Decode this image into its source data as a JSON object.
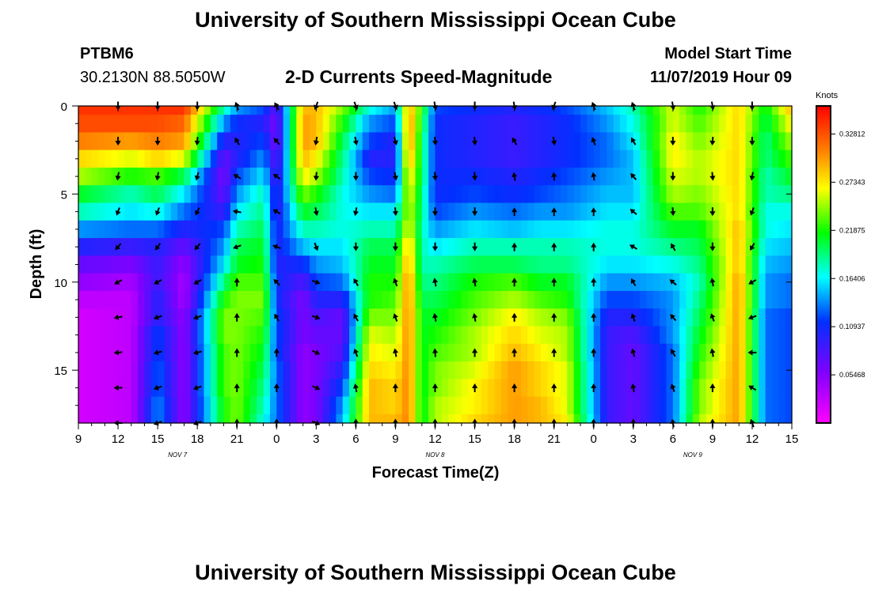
{
  "header": {
    "title_top": "University of Southern Mississippi Ocean Cube",
    "station_id": "PTBM6",
    "station_coords": "30.2130N 88.5050W",
    "chart_title": "2-D Currents Speed-Magnitude",
    "model_start_label": "Model Start Time",
    "model_start_value": "11/07/2019 Hour 09",
    "title_bottom": "University of Southern Mississippi Ocean Cube"
  },
  "chart_data": {
    "type": "heatmap",
    "title": "2-D Currents Speed-Magnitude",
    "xlabel": "Forecast Time(Z)",
    "ylabel": "Depth (ft)",
    "x_hours": [
      0,
      3,
      6,
      9,
      12,
      15,
      18,
      21,
      24,
      27,
      30,
      33,
      36,
      39,
      42,
      45,
      48,
      51,
      54
    ],
    "x_tick_labels": [
      "9",
      "12",
      "15",
      "18",
      "21",
      "0",
      "3",
      "6",
      "9",
      "12",
      "15",
      "18",
      "21",
      "0",
      "3",
      "6",
      "9",
      "12",
      "15"
    ],
    "date_labels": [
      {
        "text": "NOV 7",
        "hour": 7.5
      },
      {
        "text": "NOV 8",
        "hour": 27
      },
      {
        "text": "NOV 9",
        "hour": 46.5
      }
    ],
    "ylim": [
      0,
      18
    ],
    "y_ticks": [
      0,
      5,
      10,
      15
    ],
    "colorbar": {
      "label": "Knots",
      "range": [
        0,
        0.36
      ],
      "ticks": [
        "0.32812",
        "0.27343",
        "0.21875",
        "0.16406",
        "0.10937",
        "0.05468"
      ],
      "tick_values": [
        0.32812,
        0.27343,
        0.21875,
        0.16406,
        0.10937,
        0.05468
      ]
    },
    "depth_levels": [
      0,
      1,
      2,
      3,
      4,
      5,
      6,
      7,
      8,
      9,
      10,
      11,
      12,
      13,
      14,
      15,
      16,
      17,
      18
    ],
    "speed_profiles_knots": [
      {
        "hour": 0,
        "speeds": [
          0.34,
          0.33,
          0.31,
          0.28,
          0.25,
          0.21,
          0.18,
          0.14,
          0.1,
          0.07,
          0.05,
          0.03,
          0.02,
          0.02,
          0.02,
          0.02,
          0.02,
          0.02,
          0.02
        ]
      },
      {
        "hour": 4,
        "speeds": [
          0.34,
          0.33,
          0.3,
          0.26,
          0.22,
          0.18,
          0.16,
          0.13,
          0.09,
          0.06,
          0.04,
          0.03,
          0.03,
          0.03,
          0.03,
          0.03,
          0.03,
          0.03,
          0.03
        ]
      },
      {
        "hour": 6,
        "speeds": [
          0.34,
          0.33,
          0.31,
          0.28,
          0.23,
          0.2,
          0.17,
          0.13,
          0.1,
          0.09,
          0.09,
          0.1,
          0.1,
          0.12,
          0.12,
          0.13,
          0.13,
          0.14,
          0.14
        ]
      },
      {
        "hour": 8,
        "speeds": [
          0.34,
          0.32,
          0.3,
          0.26,
          0.2,
          0.16,
          0.13,
          0.1,
          0.07,
          0.05,
          0.04,
          0.04,
          0.05,
          0.05,
          0.05,
          0.05,
          0.05,
          0.05,
          0.05
        ]
      },
      {
        "hour": 11,
        "speeds": [
          0.18,
          0.14,
          0.1,
          0.07,
          0.06,
          0.07,
          0.09,
          0.12,
          0.14,
          0.16,
          0.19,
          0.22,
          0.24,
          0.24,
          0.23,
          0.23,
          0.23,
          0.22,
          0.22
        ]
      },
      {
        "hour": 12,
        "speeds": [
          0.14,
          0.11,
          0.1,
          0.1,
          0.12,
          0.14,
          0.16,
          0.18,
          0.2,
          0.21,
          0.23,
          0.24,
          0.24,
          0.24,
          0.24,
          0.24,
          0.24,
          0.24,
          0.24
        ]
      },
      {
        "hour": 14,
        "speeds": [
          0.12,
          0.1,
          0.12,
          0.14,
          0.16,
          0.18,
          0.19,
          0.2,
          0.21,
          0.22,
          0.23,
          0.24,
          0.23,
          0.22,
          0.21,
          0.2,
          0.19,
          0.18,
          0.17
        ]
      },
      {
        "hour": 15,
        "speeds": [
          0.07,
          0.06,
          0.06,
          0.07,
          0.08,
          0.09,
          0.09,
          0.1,
          0.1,
          0.1,
          0.11,
          0.11,
          0.12,
          0.12,
          0.12,
          0.13,
          0.13,
          0.13,
          0.13
        ]
      },
      {
        "hour": 17,
        "speeds": [
          0.29,
          0.3,
          0.3,
          0.29,
          0.27,
          0.24,
          0.21,
          0.18,
          0.15,
          0.11,
          0.08,
          0.06,
          0.06,
          0.06,
          0.05,
          0.05,
          0.05,
          0.05,
          0.05
        ]
      },
      {
        "hour": 18,
        "speeds": [
          0.29,
          0.29,
          0.29,
          0.27,
          0.25,
          0.22,
          0.2,
          0.18,
          0.16,
          0.14,
          0.12,
          0.1,
          0.08,
          0.07,
          0.06,
          0.06,
          0.06,
          0.06,
          0.06
        ]
      },
      {
        "hour": 20,
        "speeds": [
          0.24,
          0.22,
          0.2,
          0.19,
          0.18,
          0.17,
          0.17,
          0.17,
          0.16,
          0.15,
          0.13,
          0.1,
          0.07,
          0.07,
          0.08,
          0.1,
          0.12,
          0.14,
          0.15
        ]
      },
      {
        "hour": 22,
        "speeds": [
          0.17,
          0.14,
          0.12,
          0.1,
          0.12,
          0.14,
          0.16,
          0.18,
          0.2,
          0.21,
          0.22,
          0.22,
          0.24,
          0.26,
          0.27,
          0.28,
          0.29,
          0.29,
          0.29
        ]
      },
      {
        "hour": 24,
        "speeds": [
          0.14,
          0.12,
          0.1,
          0.1,
          0.11,
          0.13,
          0.16,
          0.18,
          0.2,
          0.21,
          0.22,
          0.23,
          0.24,
          0.25,
          0.26,
          0.27,
          0.28,
          0.28,
          0.29
        ]
      },
      {
        "hour": 25,
        "speeds": [
          0.3,
          0.31,
          0.31,
          0.3,
          0.28,
          0.27,
          0.26,
          0.27,
          0.29,
          0.3,
          0.31,
          0.31,
          0.31,
          0.31,
          0.31,
          0.31,
          0.31,
          0.31,
          0.31
        ]
      },
      {
        "hour": 26,
        "speeds": [
          0.22,
          0.21,
          0.2,
          0.2,
          0.2,
          0.19,
          0.19,
          0.18,
          0.18,
          0.18,
          0.19,
          0.2,
          0.21,
          0.21,
          0.21,
          0.21,
          0.21,
          0.21,
          0.21
        ]
      },
      {
        "hour": 27,
        "speeds": [
          0.12,
          0.11,
          0.11,
          0.11,
          0.11,
          0.11,
          0.12,
          0.14,
          0.16,
          0.18,
          0.19,
          0.2,
          0.21,
          0.22,
          0.23,
          0.24,
          0.24,
          0.25,
          0.25
        ]
      },
      {
        "hour": 30,
        "speeds": [
          0.11,
          0.1,
          0.1,
          0.1,
          0.11,
          0.12,
          0.14,
          0.16,
          0.18,
          0.2,
          0.22,
          0.23,
          0.24,
          0.25,
          0.25,
          0.26,
          0.27,
          0.27,
          0.28
        ]
      },
      {
        "hour": 33,
        "speeds": [
          0.1,
          0.09,
          0.09,
          0.09,
          0.1,
          0.11,
          0.13,
          0.15,
          0.18,
          0.2,
          0.23,
          0.25,
          0.27,
          0.28,
          0.29,
          0.3,
          0.3,
          0.3,
          0.3
        ]
      },
      {
        "hour": 35,
        "speeds": [
          0.11,
          0.1,
          0.1,
          0.1,
          0.11,
          0.12,
          0.14,
          0.16,
          0.18,
          0.19,
          0.21,
          0.23,
          0.25,
          0.26,
          0.27,
          0.28,
          0.28,
          0.29,
          0.29
        ]
      },
      {
        "hour": 37,
        "speeds": [
          0.12,
          0.11,
          0.11,
          0.11,
          0.12,
          0.13,
          0.14,
          0.16,
          0.18,
          0.19,
          0.21,
          0.22,
          0.24,
          0.25,
          0.25,
          0.26,
          0.26,
          0.26,
          0.27
        ]
      },
      {
        "hour": 40,
        "speeds": [
          0.15,
          0.14,
          0.13,
          0.13,
          0.14,
          0.15,
          0.16,
          0.17,
          0.17,
          0.16,
          0.14,
          0.12,
          0.1,
          0.09,
          0.09,
          0.09,
          0.09,
          0.09,
          0.09
        ]
      },
      {
        "hour": 42,
        "speeds": [
          0.18,
          0.17,
          0.16,
          0.15,
          0.15,
          0.15,
          0.16,
          0.17,
          0.17,
          0.16,
          0.14,
          0.12,
          0.1,
          0.08,
          0.07,
          0.07,
          0.07,
          0.07,
          0.07
        ]
      },
      {
        "hour": 45,
        "speeds": [
          0.26,
          0.26,
          0.27,
          0.27,
          0.26,
          0.25,
          0.23,
          0.21,
          0.19,
          0.17,
          0.15,
          0.14,
          0.14,
          0.14,
          0.13,
          0.13,
          0.13,
          0.13,
          0.13
        ]
      },
      {
        "hour": 47,
        "speeds": [
          0.22,
          0.23,
          0.24,
          0.25,
          0.25,
          0.24,
          0.23,
          0.21,
          0.2,
          0.19,
          0.18,
          0.19,
          0.2,
          0.21,
          0.22,
          0.23,
          0.24,
          0.24,
          0.25
        ]
      },
      {
        "hour": 50,
        "speeds": [
          0.28,
          0.28,
          0.28,
          0.28,
          0.28,
          0.28,
          0.28,
          0.29,
          0.29,
          0.29,
          0.3,
          0.3,
          0.3,
          0.3,
          0.3,
          0.3,
          0.3,
          0.3,
          0.3
        ]
      },
      {
        "hour": 52,
        "speeds": [
          0.21,
          0.2,
          0.19,
          0.19,
          0.18,
          0.18,
          0.17,
          0.17,
          0.16,
          0.15,
          0.14,
          0.14,
          0.13,
          0.13,
          0.13,
          0.13,
          0.13,
          0.13,
          0.13
        ]
      },
      {
        "hour": 54,
        "speeds": [
          0.29,
          0.27,
          0.25,
          0.23,
          0.21,
          0.19,
          0.17,
          0.16,
          0.15,
          0.14,
          0.13,
          0.13,
          0.12,
          0.12,
          0.12,
          0.12,
          0.12,
          0.12,
          0.12
        ]
      }
    ],
    "vector_depths": [
      0,
      2,
      4,
      6,
      8,
      10,
      12,
      14,
      16,
      18
    ],
    "vector_columns": [
      {
        "hour": 3,
        "dirs_deg": [
          180,
          180,
          190,
          200,
          220,
          240,
          260,
          265,
          268,
          270
        ]
      },
      {
        "hour": 6,
        "dirs_deg": [
          180,
          180,
          190,
          200,
          215,
          240,
          250,
          255,
          250,
          250
        ]
      },
      {
        "hour": 9,
        "dirs_deg": [
          180,
          185,
          195,
          205,
          220,
          240,
          250,
          255,
          250,
          250
        ]
      },
      {
        "hour": 12,
        "dirs_deg": [
          340,
          330,
          300,
          280,
          250,
          0,
          0,
          0,
          0,
          0
        ]
      },
      {
        "hour": 15,
        "dirs_deg": [
          330,
          320,
          305,
          300,
          290,
          315,
          330,
          0,
          0,
          0
        ]
      },
      {
        "hour": 18,
        "dirs_deg": [
          200,
          190,
          185,
          170,
          160,
          110,
          110,
          115,
          115,
          115
        ]
      },
      {
        "hour": 21,
        "dirs_deg": [
          160,
          170,
          180,
          190,
          180,
          330,
          330,
          340,
          350,
          0
        ]
      },
      {
        "hour": 24,
        "dirs_deg": [
          160,
          165,
          170,
          175,
          180,
          340,
          340,
          350,
          0,
          0
        ]
      },
      {
        "hour": 27,
        "dirs_deg": [
          170,
          175,
          175,
          180,
          180,
          350,
          350,
          355,
          0,
          0
        ]
      },
      {
        "hour": 30,
        "dirs_deg": [
          180,
          175,
          175,
          180,
          180,
          350,
          350,
          0,
          0,
          0
        ]
      },
      {
        "hour": 33,
        "dirs_deg": [
          170,
          330,
          350,
          0,
          0,
          0,
          0,
          0,
          0,
          0
        ]
      },
      {
        "hour": 36,
        "dirs_deg": [
          200,
          170,
          355,
          0,
          0,
          0,
          0,
          0,
          0,
          0
        ]
      },
      {
        "hour": 39,
        "dirs_deg": [
          340,
          340,
          350,
          0,
          0,
          0,
          0,
          0,
          0,
          0
        ]
      },
      {
        "hour": 42,
        "dirs_deg": [
          340,
          330,
          320,
          310,
          300,
          330,
          340,
          345,
          350,
          0
        ]
      },
      {
        "hour": 45,
        "dirs_deg": [
          170,
          180,
          180,
          175,
          330,
          310,
          320,
          330,
          340,
          350
        ]
      },
      {
        "hour": 48,
        "dirs_deg": [
          170,
          185,
          175,
          180,
          180,
          350,
          340,
          350,
          0,
          0
        ]
      },
      {
        "hour": 51,
        "dirs_deg": [
          180,
          180,
          190,
          200,
          210,
          240,
          250,
          270,
          300,
          340
        ]
      }
    ]
  }
}
